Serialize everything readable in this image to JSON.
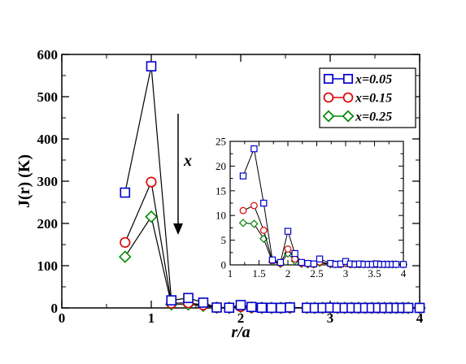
{
  "chart_data": {
    "type": "line",
    "xlabel": "r/a",
    "ylabel": "J(r)  (K)",
    "xlim": [
      0,
      4
    ],
    "ylim": [
      0,
      600
    ],
    "x_ticks": [
      "0",
      "1",
      "2",
      "3",
      "4"
    ],
    "y_ticks": [
      "0",
      "100",
      "200",
      "300",
      "400",
      "500",
      "600"
    ],
    "annotation": "x",
    "legend_position": "top-right",
    "series": [
      {
        "name": "x=0.05",
        "color": "#0000cc",
        "marker": "square",
        "x": [
          0.707,
          1.0,
          1.225,
          1.414,
          1.581,
          1.732,
          1.871,
          2.0,
          2.121,
          2.236,
          2.345,
          2.449,
          2.55,
          2.739,
          2.828,
          2.915,
          3.0,
          3.082,
          3.162,
          3.24,
          3.317,
          3.391,
          3.464,
          3.536,
          3.606,
          3.674,
          3.742,
          3.808,
          3.873,
          4.0
        ],
        "y": [
          273,
          572,
          18,
          23.5,
          12.5,
          1.0,
          0.5,
          6.8,
          2.3,
          0.5,
          0.3,
          0.2,
          1.2,
          0.3,
          0.1,
          0.2,
          0.7,
          0.2,
          0.1,
          0.2,
          0.1,
          0.1,
          0.1,
          0.2,
          0.1,
          0.1,
          0.1,
          0.1,
          0.1,
          0.1
        ]
      },
      {
        "name": "x=0.15",
        "color": "#dd0000",
        "marker": "circle",
        "x": [
          0.707,
          1.0,
          1.225,
          1.414,
          1.581,
          1.732,
          1.871,
          2.0,
          2.121,
          2.236,
          2.345,
          2.449,
          2.55,
          2.739,
          2.828,
          2.915,
          3.0,
          3.082,
          3.162,
          3.24,
          3.317,
          3.391,
          3.464,
          3.536,
          3.606,
          3.674,
          3.742,
          3.808,
          3.873,
          4.0
        ],
        "y": [
          155,
          298,
          11,
          12,
          7,
          0.8,
          0.3,
          3.2,
          1.2,
          0.3,
          0.2,
          0.1,
          0.6,
          0.2,
          0.1,
          0.1,
          0.4,
          0.1,
          0.1,
          0.1,
          0.1,
          0.1,
          0.1,
          0.1,
          0.1,
          0.1,
          0.1,
          0.1,
          0.1,
          0.1
        ]
      },
      {
        "name": "x=0.25",
        "color": "#008800",
        "marker": "diamond",
        "x": [
          0.707,
          1.0,
          1.225,
          1.414,
          1.581,
          1.732,
          1.871,
          2.0,
          2.121,
          2.236,
          2.345,
          2.449,
          2.55,
          2.739,
          2.828,
          2.915,
          3.0,
          3.082,
          3.162,
          3.24,
          3.317,
          3.391,
          3.464,
          3.536,
          3.606,
          3.674,
          3.742,
          3.808,
          3.873,
          4.0
        ],
        "y": [
          121,
          216,
          8.5,
          8.3,
          5.3,
          0.6,
          0.2,
          2.3,
          0.8,
          0.2,
          0.1,
          0.1,
          0.4,
          0.1,
          0.1,
          0.1,
          0.3,
          0.1,
          0.1,
          0.1,
          0.1,
          0.1,
          0.1,
          0.1,
          0.1,
          0.1,
          0.1,
          0.1,
          0.1,
          0.1
        ]
      }
    ],
    "inset": {
      "xlim": [
        1,
        4
      ],
      "ylim": [
        0,
        25
      ],
      "x_ticks": [
        "1",
        "1.5",
        "2",
        "2.5",
        "3",
        "3.5",
        "4"
      ],
      "y_ticks": [
        "0",
        "5",
        "10",
        "15",
        "20",
        "25"
      ],
      "shows_points_from_x": 1.2
    }
  }
}
